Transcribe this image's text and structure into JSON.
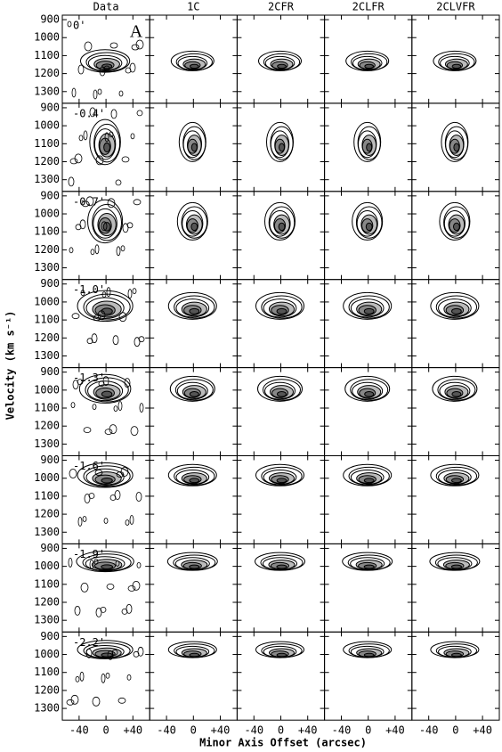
{
  "chart_data": {
    "type": "contour",
    "columns": [
      "Data",
      "1C",
      "2CFR",
      "2CLFR",
      "2CLVFR"
    ],
    "rows": [
      "0'",
      "-0.4'",
      "-0.7'",
      "-1.0'",
      "-1.3'",
      "-1.6'",
      "-1.9'",
      "-2.2'"
    ],
    "panel_label": "A",
    "xlabel": "Minor Axis Offset (arcsec)",
    "ylabel": "Velocity (km s⁻¹)",
    "xlim": [
      -65,
      65
    ],
    "ylim": [
      875,
      1365
    ],
    "xticks": [
      -40,
      0,
      {
        "value": 40,
        "label": "+40"
      }
    ],
    "yticks": [
      900,
      1000,
      1100,
      1200,
      1300
    ]
  }
}
